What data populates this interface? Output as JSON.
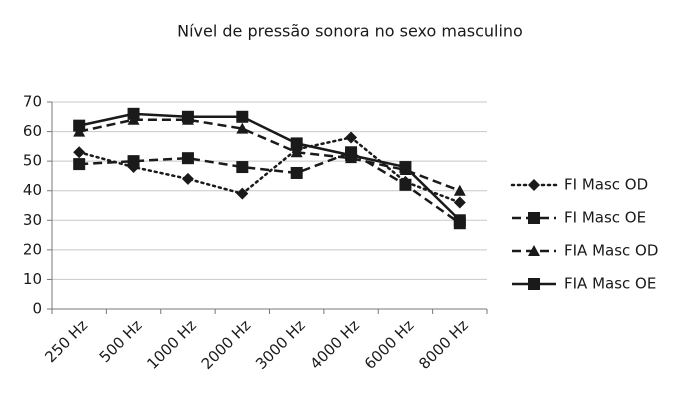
{
  "chart_data": {
    "type": "line",
    "title": "Nível de pressão sonora no sexo masculino",
    "categories": [
      "250 Hz",
      "500 Hz",
      "1000 Hz",
      "2000 Hz",
      "3000 Hz",
      "4000 Hz",
      "6000 Hz",
      "8000 Hz"
    ],
    "series": [
      {
        "name": "FI Masc OD",
        "color": "#1a1a1a",
        "dash": "dotted",
        "marker": "diamond",
        "values": [
          53,
          48,
          44,
          39,
          54,
          58,
          43,
          36
        ]
      },
      {
        "name": "FI Masc OE",
        "color": "#1a1a1a",
        "dash": "dashed",
        "marker": "square",
        "values": [
          49,
          50,
          51,
          48,
          46,
          53,
          42,
          29
        ]
      },
      {
        "name": "FIA Masc OD",
        "color": "#1a1a1a",
        "dash": "dashed",
        "marker": "triangle",
        "values": [
          60,
          64,
          64,
          61,
          53,
          51,
          47,
          40
        ]
      },
      {
        "name": "FIA Masc OE",
        "color": "#1a1a1a",
        "dash": "solid",
        "marker": "square",
        "values": [
          62,
          66,
          65,
          65,
          56,
          52,
          48,
          30
        ]
      }
    ],
    "ylim": [
      0,
      70
    ],
    "yticks": [
      0,
      10,
      20,
      30,
      40,
      50,
      60,
      70
    ],
    "grid": true,
    "legend": "right"
  }
}
